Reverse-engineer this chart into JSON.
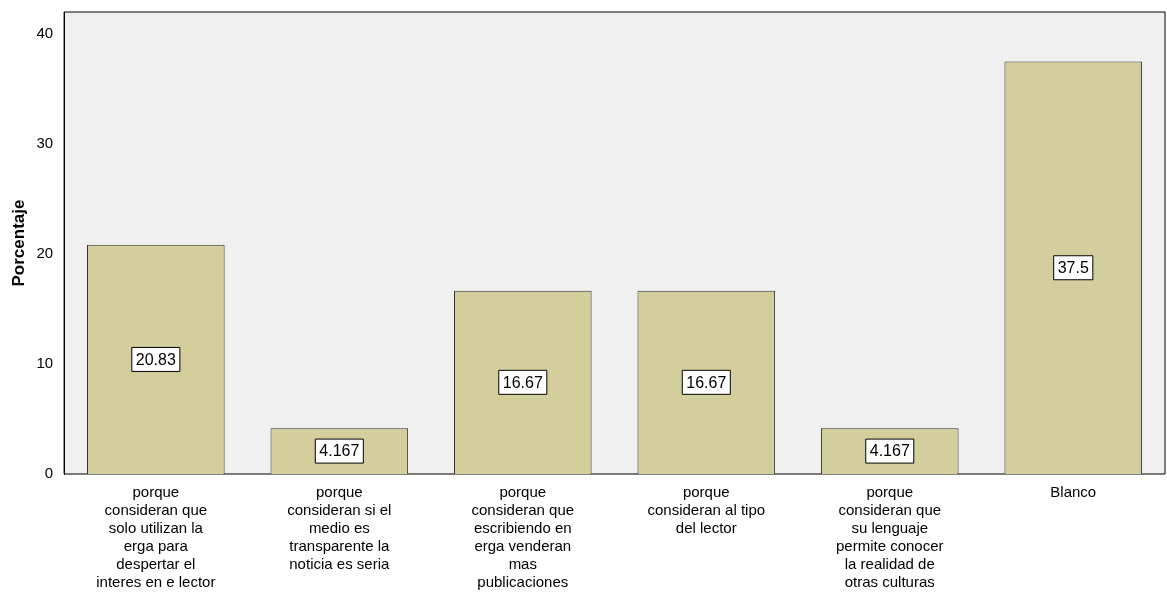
{
  "chart_data": {
    "type": "bar",
    "ylabel": "Porcentaje",
    "categories": [
      "porque consideran que solo utilizan la erga para despertar el interes en e lector",
      "porque consideran si el medio es transparente la noticia es seria",
      "porque consideran que escribiendo en erga venderan mas publicaciones",
      "porque consideran al tipo del lector",
      "porque consideran que su lenguaje permite conocer la realidad de otras culturas",
      "Blanco"
    ],
    "values": [
      20.83,
      4.167,
      16.67,
      16.67,
      4.167,
      37.5
    ],
    "color": "#d3ce9c",
    "data_labels": true,
    "ylim": [
      0,
      42
    ],
    "yticks": [
      0,
      10,
      20,
      30,
      40
    ],
    "grid": false,
    "legend": false
  }
}
